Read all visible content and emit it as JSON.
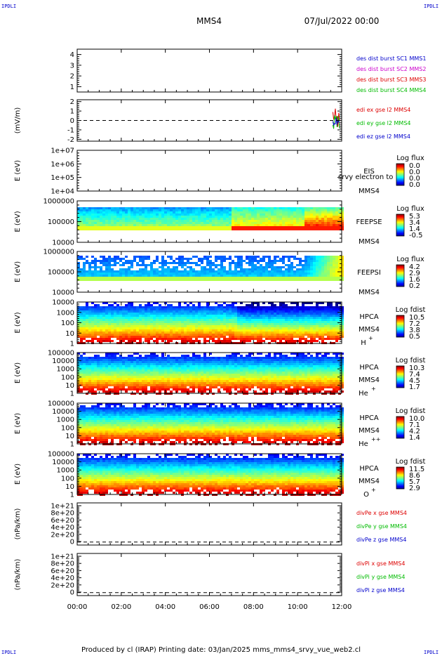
{
  "header": {
    "spacecraft": "MMS4",
    "datetime": "07/Jul/2022 00:00",
    "corner_label": "IPDLI"
  },
  "footer": {
    "text": "Produced by cl (IRAP)   Printing date: 03/Jan/2025   mms_mms4_srvy_vue_web2.cl"
  },
  "colors": {
    "blue": "#0000cc",
    "magenta": "#cc00cc",
    "red": "#dd0000",
    "green": "#00bb00"
  },
  "chart_data": {
    "type": "stacked-timeseries",
    "x_ticks": [
      "00:00",
      "02:00",
      "04:00",
      "06:00",
      "08:00",
      "10:00",
      "12:00"
    ],
    "panels": [
      {
        "id": "des-dist",
        "kind": "line",
        "ylabel": "",
        "ylim": [
          0.5,
          4.5
        ],
        "yticks": [
          "4",
          "3",
          "2",
          "1"
        ],
        "ytick_values": [
          4,
          3,
          2,
          1
        ],
        "legend": [
          {
            "text": "des dist burst SC1 MMS1",
            "color": "#0000cc"
          },
          {
            "text": "des dist burst SC2 MMS2",
            "color": "#cc00cc"
          },
          {
            "text": "des dist burst SC3 MMS3",
            "color": "#dd0000"
          },
          {
            "text": "des dist burst SC4 MMS4",
            "color": "#00bb00"
          }
        ]
      },
      {
        "id": "edi-e",
        "kind": "line",
        "ylabel": "(mV/m)",
        "ylim": [
          -2.2,
          2.2
        ],
        "yticks": [
          "2",
          "1",
          "0",
          "-1",
          "-2"
        ],
        "ytick_values": [
          2,
          1,
          0,
          -1,
          -2
        ],
        "zero_line": true,
        "data_start_hour": 11.6,
        "legend": [
          {
            "text": "edi ex gse l2 MMS4",
            "color": "#dd0000"
          },
          {
            "text": "edi ey gse l2 MMS4",
            "color": "#00bb00"
          },
          {
            "text": "edi ez gse l2 MMS4",
            "color": "#0000cc"
          }
        ]
      },
      {
        "id": "eis",
        "kind": "spectrogram",
        "ylabel": "E (eV)",
        "yticks": [
          "1e+07",
          "1e+06",
          "1e+05",
          "1e+04"
        ],
        "instrument": "EIS",
        "instrument_extra": "srvy electron to",
        "sc": "MMS4",
        "cbar_title": "Log flux",
        "cbar_ticks": [
          "0.0",
          "0.0",
          "0.0",
          "0.0"
        ],
        "empty": true
      },
      {
        "id": "feeps-e",
        "kind": "spectrogram",
        "ylabel": "E (eV)",
        "yticks": [
          "1000000",
          "100000",
          "10000"
        ],
        "instrument": "FEEPSE",
        "sc": "MMS4",
        "cbar_title": "Log flux",
        "cbar_ticks": [
          "5.3",
          "3.4",
          "1.4",
          "-0.5"
        ]
      },
      {
        "id": "feeps-i",
        "kind": "spectrogram",
        "ylabel": "E (eV)",
        "yticks": [
          "1000000",
          "100000",
          "10000"
        ],
        "instrument": "FEEPSI",
        "sc": "MMS4",
        "cbar_title": "Log flux",
        "cbar_ticks": [
          "4.2",
          "2.9",
          "1.6",
          "0.2"
        ]
      },
      {
        "id": "hpca-h",
        "kind": "spectrogram",
        "ylabel": "E (eV)",
        "yticks": [
          "10000",
          "1000",
          "100",
          "10",
          "1"
        ],
        "instrument": "HPCA",
        "sc": "MMS4",
        "species": "H",
        "charge": "+",
        "cbar_title": "Log fdist",
        "cbar_ticks": [
          "10.5",
          "7.2",
          "3.8",
          "0.5"
        ]
      },
      {
        "id": "hpca-he1",
        "kind": "spectrogram",
        "ylabel": "E (eV)",
        "yticks": [
          "100000",
          "10000",
          "1000",
          "100",
          "10",
          "1"
        ],
        "instrument": "HPCA",
        "sc": "MMS4",
        "species": "He",
        "charge": "+",
        "cbar_title": "Log fdist",
        "cbar_ticks": [
          "10.3",
          "7.4",
          "4.5",
          "1.7"
        ]
      },
      {
        "id": "hpca-he2",
        "kind": "spectrogram",
        "ylabel": "E (eV)",
        "yticks": [
          "100000",
          "10000",
          "1000",
          "100",
          "10",
          "1"
        ],
        "instrument": "HPCA",
        "sc": "MMS4",
        "species": "He",
        "charge": "++",
        "cbar_title": "Log fdist",
        "cbar_ticks": [
          "10.0",
          "7.1",
          "4.2",
          "1.4"
        ]
      },
      {
        "id": "hpca-o",
        "kind": "spectrogram",
        "ylabel": "E (eV)",
        "yticks": [
          "100000",
          "10000",
          "1000",
          "100",
          "10",
          "1"
        ],
        "instrument": "HPCA",
        "sc": "MMS4",
        "species": "O",
        "charge": "+",
        "cbar_title": "Log fdist",
        "cbar_ticks": [
          "11.5",
          "8.6",
          "5.7",
          "2.9"
        ]
      },
      {
        "id": "divpe",
        "kind": "line",
        "ylabel": "(nPa/km)",
        "yticks": [
          "1e+21",
          "8e+20",
          "6e+20",
          "4e+20",
          "2e+20",
          "0"
        ],
        "zero_line": true,
        "legend": [
          {
            "text": "divPe x gse MMS4",
            "color": "#dd0000"
          },
          {
            "text": "divPe y gse MMS4",
            "color": "#00bb00"
          },
          {
            "text": "divPe z gse MMS4",
            "color": "#0000cc"
          }
        ]
      },
      {
        "id": "divpi",
        "kind": "line",
        "ylabel": "(nPa/km)",
        "yticks": [
          "1e+21",
          "8e+20",
          "6e+20",
          "4e+20",
          "2e+20",
          "0"
        ],
        "zero_line": true,
        "legend": [
          {
            "text": "divPi x gse MMS4",
            "color": "#dd0000"
          },
          {
            "text": "divPi y gse MMS4",
            "color": "#00bb00"
          },
          {
            "text": "divPi z gse MMS4",
            "color": "#0000cc"
          }
        ]
      }
    ]
  }
}
